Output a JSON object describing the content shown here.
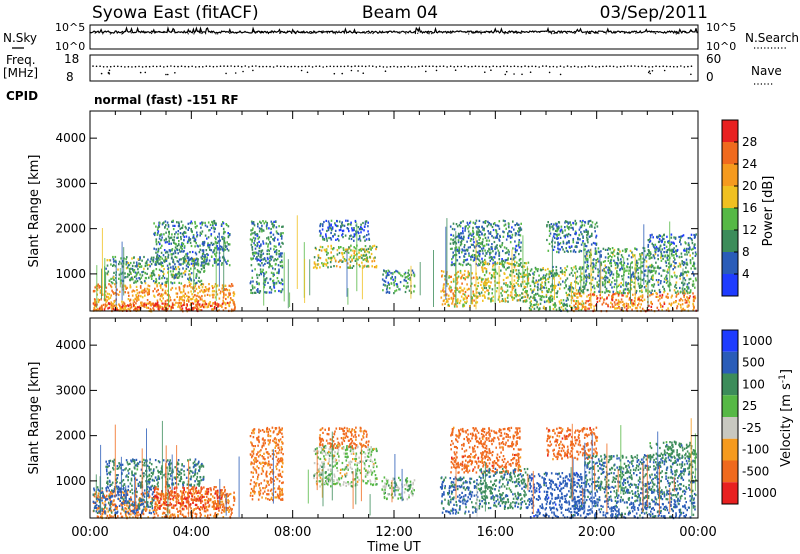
{
  "header": {
    "station": "Syowa East (fitACF)",
    "beam": "Beam 04",
    "date": "03/Sep/2011"
  },
  "status_panels": {
    "nsky_label": "N.Sky",
    "nsearch_label": "N.Search",
    "noise_top": "10^5",
    "noise_bottom": "10^0",
    "freq_label_1": "Freq.",
    "freq_label_2": "[MHz]",
    "freq_top": "18",
    "freq_bottom": "8",
    "nave_label": "Nave",
    "nave_top": "60",
    "nave_bottom": "0",
    "cpid_label": "CPID",
    "cpid_text": "normal (fast) -151 RF"
  },
  "colors": {
    "power": [
      "#1f3cff",
      "#2a5cb8",
      "#3c8c5a",
      "#56b845",
      "#f0c020",
      "#f59a1e",
      "#f06a1e",
      "#e82020"
    ],
    "velocity": [
      "#1f3cff",
      "#2a5cb8",
      "#3c8c5a",
      "#56b845",
      "#c8c8c0",
      "#f59a1e",
      "#f06a1e",
      "#e82020"
    ]
  },
  "chart_data": [
    {
      "type": "heatmap",
      "name": "power",
      "ylabel": "Slant Range [km]",
      "xlabel": "",
      "xlim": [
        0,
        24
      ],
      "ylim": [
        180,
        4600
      ],
      "x_ticks": [
        0,
        4,
        8,
        12,
        16,
        20,
        24
      ],
      "y_ticks": [
        1000,
        2000,
        3000,
        4000
      ],
      "colorbar_label": "Power [dB]",
      "colorbar_ticks": [
        "4",
        "8",
        "12",
        "16",
        "20",
        "24",
        "28"
      ],
      "colorbar_range": [
        0,
        30
      ],
      "regions": [
        {
          "t0": 0.1,
          "t1": 5.7,
          "r0": 200,
          "r1": 800,
          "val": 22
        },
        {
          "t0": 0.1,
          "t1": 5.7,
          "r0": 200,
          "r1": 400,
          "val": 27
        },
        {
          "t0": 0.6,
          "t1": 4.5,
          "r0": 800,
          "r1": 1400,
          "val": 12
        },
        {
          "t0": 2.5,
          "t1": 5.5,
          "r0": 1200,
          "r1": 2200,
          "val": 9
        },
        {
          "t0": 6.3,
          "t1": 7.6,
          "r0": 600,
          "r1": 2200,
          "val": 9
        },
        {
          "t0": 8.8,
          "t1": 11.3,
          "r0": 1150,
          "r1": 1650,
          "val": 16
        },
        {
          "t0": 9.0,
          "t1": 11.0,
          "r0": 1750,
          "r1": 2200,
          "val": 7
        },
        {
          "t0": 11.5,
          "t1": 12.8,
          "r0": 600,
          "r1": 1100,
          "val": 9
        },
        {
          "t0": 13.8,
          "t1": 15.3,
          "r0": 300,
          "r1": 1100,
          "val": 20
        },
        {
          "t0": 14.2,
          "t1": 17.0,
          "r0": 1200,
          "r1": 2200,
          "val": 9
        },
        {
          "t0": 15.3,
          "t1": 17.3,
          "r0": 400,
          "r1": 1300,
          "val": 16
        },
        {
          "t0": 17.3,
          "t1": 19.5,
          "r0": 200,
          "r1": 1200,
          "val": 13
        },
        {
          "t0": 18.0,
          "t1": 20.0,
          "r0": 1500,
          "r1": 2200,
          "val": 8
        },
        {
          "t0": 19.0,
          "t1": 23.9,
          "r0": 200,
          "r1": 600,
          "val": 24
        },
        {
          "t0": 19.5,
          "t1": 23.9,
          "r0": 600,
          "r1": 1600,
          "val": 11
        },
        {
          "t0": 22.0,
          "t1": 23.9,
          "r0": 1500,
          "r1": 1900,
          "val": 7
        }
      ]
    },
    {
      "type": "heatmap",
      "name": "velocity",
      "ylabel": "Slant Range [km]",
      "xlabel": "Time UT",
      "xlim": [
        0,
        24
      ],
      "ylim": [
        180,
        4600
      ],
      "x_ticks": [
        0,
        4,
        8,
        12,
        16,
        20,
        24
      ],
      "x_tick_labels": [
        "00:00",
        "04:00",
        "08:00",
        "12:00",
        "16:00",
        "20:00",
        "00:00"
      ],
      "y_ticks": [
        1000,
        2000,
        3000,
        4000
      ],
      "colorbar_label": "Velocity [m s^-1]",
      "colorbar_ticks": [
        "1000",
        "500",
        "100",
        "25",
        "-25",
        "-100",
        "-500",
        "-1000"
      ],
      "regions": [
        {
          "t0": 0.1,
          "t1": 5.7,
          "r0": 200,
          "r1": 800,
          "val": -120
        },
        {
          "t0": 0.1,
          "t1": 2.5,
          "r0": 300,
          "r1": 900,
          "val": 150
        },
        {
          "t0": 2.5,
          "t1": 5.3,
          "r0": 400,
          "r1": 900,
          "val": -400
        },
        {
          "t0": 0.6,
          "t1": 4.5,
          "r0": 900,
          "r1": 1500,
          "val": 80
        },
        {
          "t0": 6.3,
          "t1": 7.6,
          "r0": 600,
          "r1": 2200,
          "val": -150
        },
        {
          "t0": 8.8,
          "t1": 11.3,
          "r0": 900,
          "r1": 1800,
          "val": 0
        },
        {
          "t0": 9.0,
          "t1": 11.0,
          "r0": 1750,
          "r1": 2200,
          "val": -200
        },
        {
          "t0": 11.5,
          "t1": 12.8,
          "r0": 600,
          "r1": 1100,
          "val": 5
        },
        {
          "t0": 13.8,
          "t1": 15.3,
          "r0": 300,
          "r1": 1100,
          "val": 150
        },
        {
          "t0": 14.2,
          "t1": 17.0,
          "r0": 1200,
          "r1": 2200,
          "val": -300
        },
        {
          "t0": 15.3,
          "t1": 17.3,
          "r0": 400,
          "r1": 1300,
          "val": 80
        },
        {
          "t0": 17.3,
          "t1": 19.5,
          "r0": 200,
          "r1": 1200,
          "val": 300
        },
        {
          "t0": 18.0,
          "t1": 20.0,
          "r0": 1500,
          "r1": 2200,
          "val": -300
        },
        {
          "t0": 19.0,
          "t1": 23.9,
          "r0": 200,
          "r1": 600,
          "val": 200
        },
        {
          "t0": 19.5,
          "t1": 23.9,
          "r0": 600,
          "r1": 1600,
          "val": 90
        },
        {
          "t0": 22.0,
          "t1": 23.9,
          "r0": 1500,
          "r1": 1900,
          "val": 60
        }
      ]
    }
  ]
}
